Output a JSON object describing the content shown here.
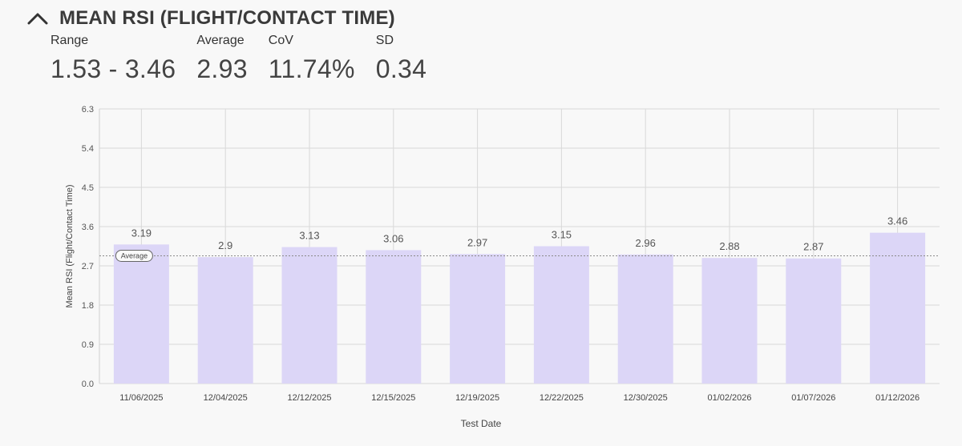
{
  "header": {
    "title": "MEAN RSI (FLIGHT/CONTACT TIME)",
    "collapse_icon": "chevron-up-icon"
  },
  "stats": [
    {
      "label": "Range",
      "value": "1.53 - 3.46"
    },
    {
      "label": "Average",
      "value": "2.93"
    },
    {
      "label": "CoV",
      "value": "11.74%"
    },
    {
      "label": "SD",
      "value": "0.34"
    }
  ],
  "chart_data": {
    "type": "bar",
    "categories": [
      "11/06/2025",
      "12/04/2025",
      "12/12/2025",
      "12/15/2025",
      "12/19/2025",
      "12/22/2025",
      "12/30/2025",
      "01/02/2026",
      "01/07/2026",
      "01/12/2026"
    ],
    "values": [
      3.19,
      2.9,
      3.13,
      3.06,
      2.97,
      3.15,
      2.96,
      2.88,
      2.87,
      3.46
    ],
    "value_labels": [
      "3.19",
      "2.9",
      "3.13",
      "3.06",
      "2.97",
      "3.15",
      "2.96",
      "2.88",
      "2.87",
      "3.46"
    ],
    "xlabel": "Test Date",
    "ylabel": "Mean RSI (Flight/Contact Time)",
    "ylim": [
      0,
      6.3
    ],
    "yticks": [
      "0.0",
      "0.9",
      "1.8",
      "2.7",
      "3.6",
      "4.5",
      "5.4",
      "6.3"
    ],
    "average": 2.93,
    "average_label": "Average",
    "grid": true,
    "colors": {
      "bar": "#dcd6f7",
      "grid": "#d9d9d9",
      "average_line": "#8a8a8a"
    }
  }
}
